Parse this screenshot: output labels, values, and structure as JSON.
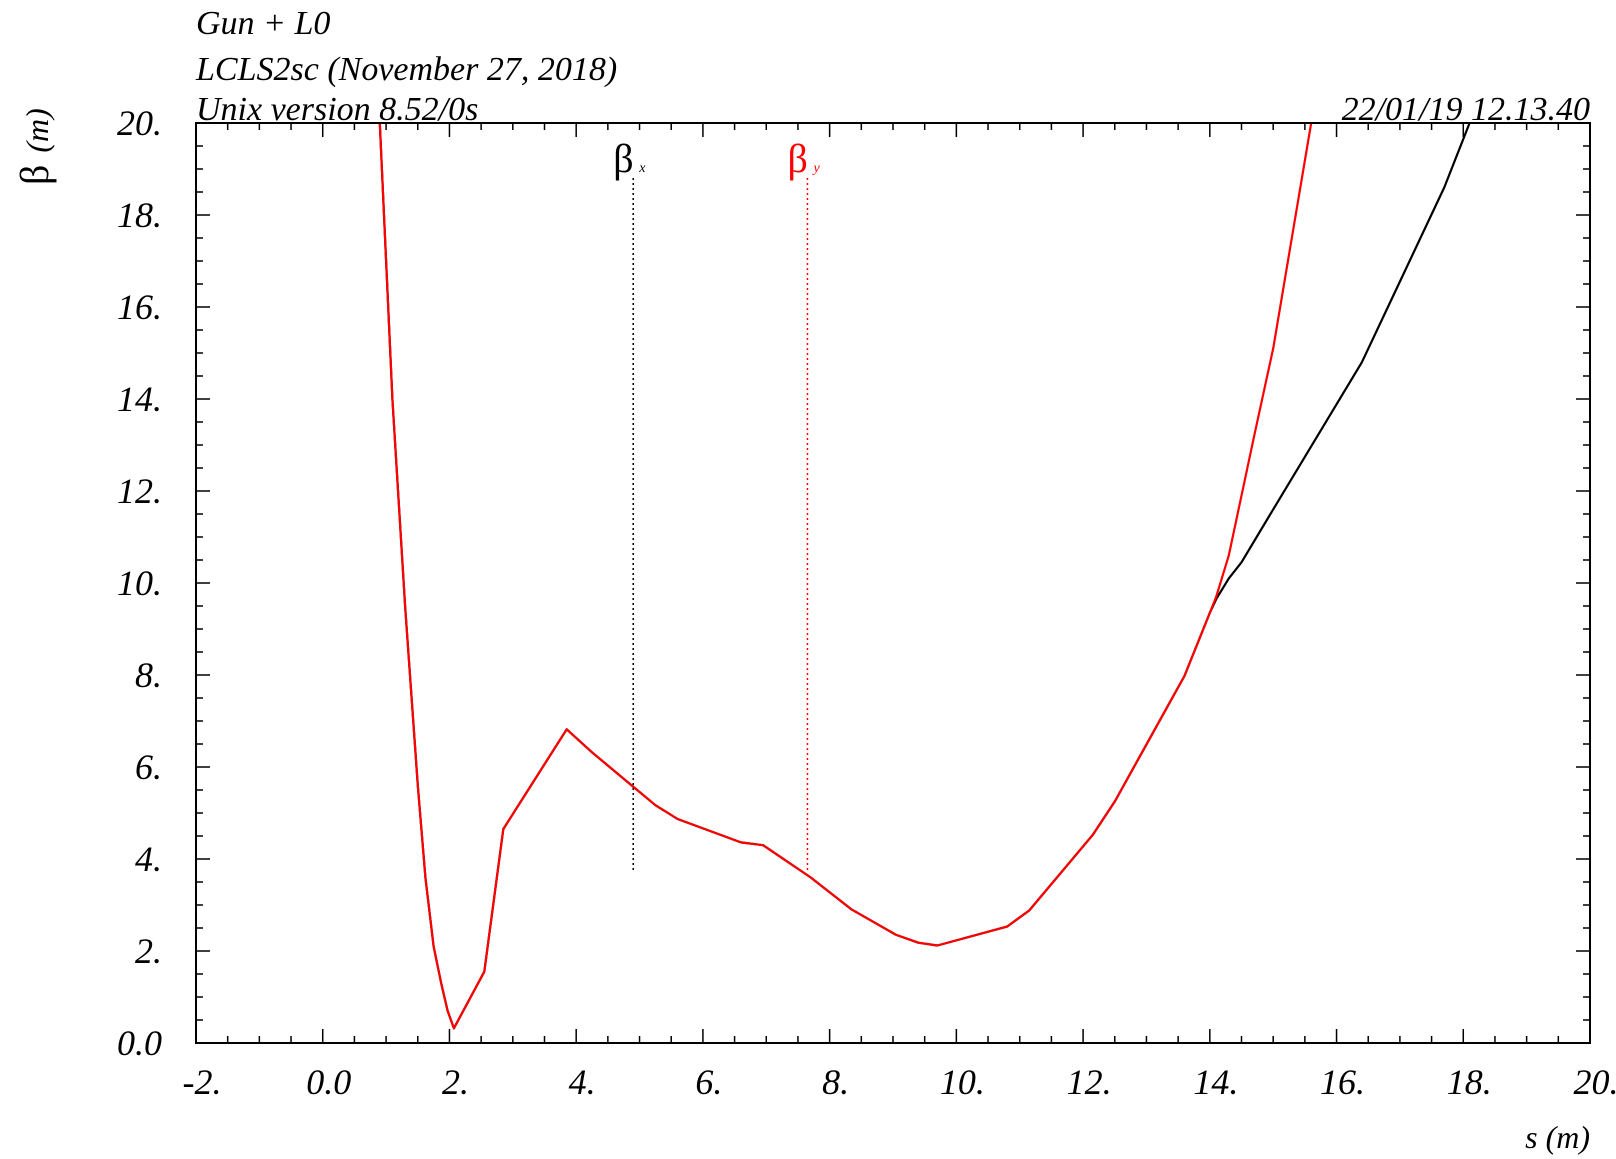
{
  "header": {
    "line1": "Gun + L0",
    "line2": "LCLS2sc (November 27, 2018)",
    "line3": "Unix version 8.52/0s",
    "timestamp": "22/01/19  12.13.40"
  },
  "chart_data": {
    "type": "line",
    "xlabel": "s (m)",
    "ylabel_symbol": "β",
    "ylabel_unit": "(m)",
    "xlim": [
      -2,
      20
    ],
    "ylim": [
      0,
      20
    ],
    "xticks": [
      {
        "v": -2,
        "label": "-2."
      },
      {
        "v": 0,
        "label": "0.0"
      },
      {
        "v": 2,
        "label": "2."
      },
      {
        "v": 4,
        "label": "4."
      },
      {
        "v": 6,
        "label": "6."
      },
      {
        "v": 8,
        "label": "8."
      },
      {
        "v": 10,
        "label": "10."
      },
      {
        "v": 12,
        "label": "12."
      },
      {
        "v": 14,
        "label": "14."
      },
      {
        "v": 16,
        "label": "16."
      },
      {
        "v": 18,
        "label": "18."
      },
      {
        "v": 20,
        "label": "20."
      }
    ],
    "yticks": [
      {
        "v": 0,
        "label": "0.0"
      },
      {
        "v": 2,
        "label": "2."
      },
      {
        "v": 4,
        "label": "4."
      },
      {
        "v": 6,
        "label": "6."
      },
      {
        "v": 8,
        "label": "8."
      },
      {
        "v": 10,
        "label": "10."
      },
      {
        "v": 12,
        "label": "12."
      },
      {
        "v": 14,
        "label": "14."
      },
      {
        "v": 16,
        "label": "16."
      },
      {
        "v": 18,
        "label": "18."
      },
      {
        "v": 20,
        "label": "20."
      }
    ],
    "series": [
      {
        "name": "βx",
        "symbol": "β",
        "subscript": "x",
        "color": "#000000",
        "marker_s": 4.9,
        "x": [
          0.9,
          1.1,
          1.3,
          1.5,
          1.62,
          1.75,
          1.87,
          1.97,
          2.07,
          2.55,
          2.85,
          3.85,
          4.25,
          5.25,
          5.6,
          6.6,
          6.95,
          7.7,
          8.35,
          9.05,
          9.4,
          9.7,
          10.8,
          11.15,
          12.15,
          12.5,
          13.6,
          14.0,
          14.1,
          14.3,
          14.5,
          15.0,
          16.4,
          17.7,
          18.1
        ],
        "y": [
          20.0,
          14.0,
          9.5,
          5.6,
          3.6,
          2.1,
          1.3,
          0.7,
          0.32,
          1.55,
          4.65,
          6.82,
          6.32,
          5.17,
          4.87,
          4.36,
          4.3,
          3.6,
          2.9,
          2.35,
          2.18,
          2.12,
          2.53,
          2.88,
          4.52,
          5.25,
          7.98,
          9.35,
          9.65,
          10.1,
          10.45,
          11.6,
          14.8,
          18.6,
          20.0
        ]
      },
      {
        "name": "βy",
        "symbol": "β",
        "subscript": "y",
        "color": "#ff0000",
        "marker_s": 7.65,
        "x": [
          0.9,
          1.1,
          1.3,
          1.5,
          1.62,
          1.75,
          1.87,
          1.97,
          2.07,
          2.55,
          2.85,
          3.85,
          4.25,
          5.25,
          5.6,
          6.6,
          6.95,
          7.7,
          8.35,
          9.05,
          9.4,
          9.7,
          10.8,
          11.15,
          12.15,
          12.5,
          13.6,
          14.0,
          14.1,
          14.3,
          14.7,
          15.0,
          15.6
        ],
        "y": [
          20.0,
          14.0,
          9.5,
          5.6,
          3.6,
          2.1,
          1.3,
          0.7,
          0.32,
          1.55,
          4.65,
          6.82,
          6.32,
          5.17,
          4.87,
          4.36,
          4.3,
          3.6,
          2.9,
          2.35,
          2.18,
          2.12,
          2.53,
          2.88,
          4.52,
          5.25,
          7.98,
          9.35,
          9.7,
          10.6,
          13.2,
          15.1,
          20.0
        ]
      }
    ]
  }
}
